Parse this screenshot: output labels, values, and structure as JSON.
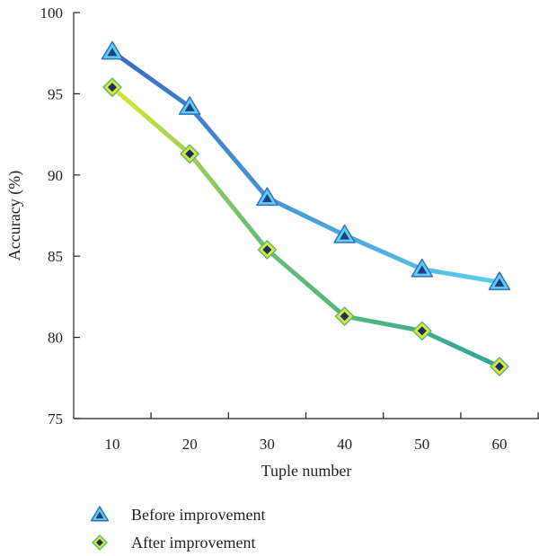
{
  "chart_data": {
    "type": "line",
    "x": [
      10,
      20,
      30,
      40,
      50,
      60
    ],
    "xlabel": "Tuple number",
    "ylabel": "Accuracy (%)",
    "ylim": [
      75,
      100
    ],
    "yticks": [
      75,
      80,
      85,
      90,
      95,
      100
    ],
    "xlim": [
      0,
      65
    ],
    "grid": false,
    "legend_position": "bottom",
    "series": [
      {
        "name": "Before improvement",
        "values": [
          97.6,
          94.2,
          88.6,
          86.3,
          84.2,
          83.4
        ],
        "marker": "triangle",
        "color_start": "#3a6cc0",
        "color_end": "#5ad0ee",
        "marker_fill": "#1e3f86"
      },
      {
        "name": "After improvement",
        "values": [
          95.4,
          91.3,
          85.4,
          81.3,
          80.4,
          78.2
        ],
        "marker": "diamond",
        "color_start": "#d9e830",
        "color_end": "#2aa898",
        "marker_fill": "#1a2f6a"
      }
    ]
  }
}
